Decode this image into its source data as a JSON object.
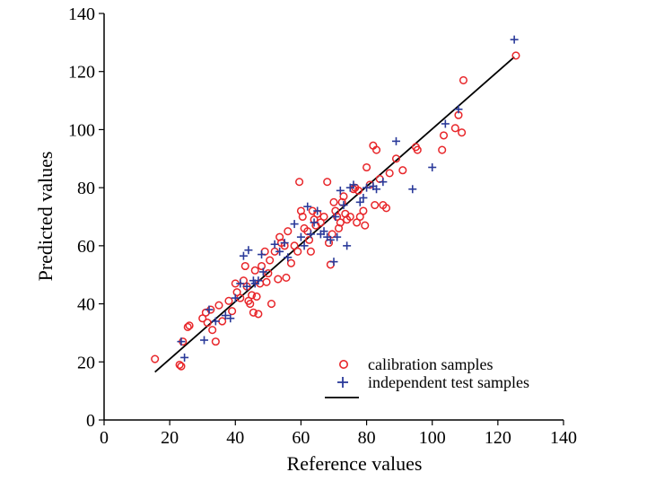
{
  "chart_data": {
    "type": "scatter",
    "xlabel": "Reference values",
    "ylabel": "Predicted values",
    "xlim": [
      0,
      140
    ],
    "ylim": [
      0,
      140
    ],
    "xticks": [
      0,
      20,
      40,
      60,
      80,
      100,
      120,
      140
    ],
    "yticks": [
      0,
      20,
      40,
      60,
      80,
      100,
      120,
      140
    ],
    "grid": false,
    "legend_position": "bottom-right",
    "colors": {
      "calibration": "#e8262a",
      "test": "#2a3a9a",
      "line": "#000000"
    },
    "series": [
      {
        "name": "calibration samples",
        "marker": "circle",
        "points": [
          [
            15.5,
            21
          ],
          [
            23,
            19
          ],
          [
            23.5,
            18.5
          ],
          [
            24,
            27
          ],
          [
            25.5,
            32
          ],
          [
            26,
            32.5
          ],
          [
            30,
            35
          ],
          [
            31,
            37
          ],
          [
            31.5,
            33.5
          ],
          [
            32.5,
            38
          ],
          [
            33,
            31
          ],
          [
            34,
            27
          ],
          [
            35,
            39.5
          ],
          [
            36,
            34
          ],
          [
            38,
            41
          ],
          [
            39,
            37.5
          ],
          [
            40,
            47
          ],
          [
            40.5,
            44
          ],
          [
            41.5,
            42
          ],
          [
            42.5,
            48
          ],
          [
            43,
            53
          ],
          [
            43.5,
            46
          ],
          [
            44,
            41
          ],
          [
            44.5,
            40
          ],
          [
            45,
            43
          ],
          [
            45.5,
            37
          ],
          [
            46,
            51.5
          ],
          [
            46.5,
            42.5
          ],
          [
            47,
            36.5
          ],
          [
            47.5,
            47
          ],
          [
            48,
            53
          ],
          [
            49,
            58
          ],
          [
            49.5,
            47.5
          ],
          [
            50,
            50.5
          ],
          [
            50.5,
            55
          ],
          [
            51,
            40
          ],
          [
            52,
            58
          ],
          [
            53,
            48.5
          ],
          [
            53.5,
            63
          ],
          [
            54,
            61
          ],
          [
            55,
            60
          ],
          [
            55.5,
            49
          ],
          [
            56,
            65
          ],
          [
            57,
            54
          ],
          [
            58,
            60
          ],
          [
            59,
            58
          ],
          [
            59.5,
            82
          ],
          [
            60,
            72
          ],
          [
            60.5,
            70
          ],
          [
            61,
            66
          ],
          [
            62,
            65
          ],
          [
            62.5,
            62
          ],
          [
            63,
            58
          ],
          [
            63.5,
            72
          ],
          [
            64,
            69
          ],
          [
            64.5,
            67
          ],
          [
            65,
            71
          ],
          [
            66,
            68
          ],
          [
            67,
            70
          ],
          [
            68,
            82
          ],
          [
            68.5,
            61
          ],
          [
            69,
            53.5
          ],
          [
            69.5,
            64
          ],
          [
            70,
            75
          ],
          [
            70.5,
            72
          ],
          [
            71,
            70
          ],
          [
            71.5,
            66
          ],
          [
            72,
            68
          ],
          [
            72.5,
            75
          ],
          [
            73,
            77
          ],
          [
            73.5,
            71
          ],
          [
            74,
            69
          ],
          [
            75,
            70
          ],
          [
            76,
            79.5
          ],
          [
            76.5,
            80
          ],
          [
            77,
            68
          ],
          [
            77.5,
            79
          ],
          [
            78,
            70
          ],
          [
            79,
            72
          ],
          [
            79.5,
            67
          ],
          [
            80,
            87
          ],
          [
            81,
            81
          ],
          [
            82,
            94.5
          ],
          [
            82.5,
            74
          ],
          [
            83,
            93
          ],
          [
            84,
            83
          ],
          [
            85,
            74
          ],
          [
            86,
            73
          ],
          [
            87,
            85
          ],
          [
            89,
            90
          ],
          [
            91,
            86
          ],
          [
            95,
            94
          ],
          [
            95.5,
            93
          ],
          [
            103,
            93
          ],
          [
            103.5,
            98
          ],
          [
            107,
            100.5
          ],
          [
            108,
            105
          ],
          [
            109,
            99
          ],
          [
            109.5,
            117
          ],
          [
            125.5,
            125.5
          ]
        ]
      },
      {
        "name": "independent test samples",
        "marker": "plus",
        "points": [
          [
            23.5,
            27
          ],
          [
            24.5,
            21.5
          ],
          [
            30.5,
            27.5
          ],
          [
            32,
            38
          ],
          [
            34,
            34
          ],
          [
            37,
            36
          ],
          [
            38.5,
            35
          ],
          [
            40,
            42
          ],
          [
            41.5,
            47
          ],
          [
            42.5,
            56.5
          ],
          [
            43.5,
            46
          ],
          [
            44,
            58.5
          ],
          [
            45.5,
            48
          ],
          [
            46,
            47
          ],
          [
            47,
            48
          ],
          [
            48,
            57
          ],
          [
            48.5,
            51
          ],
          [
            52,
            60.5
          ],
          [
            53.5,
            58
          ],
          [
            55,
            61
          ],
          [
            56,
            56
          ],
          [
            58,
            67.5
          ],
          [
            60,
            63
          ],
          [
            61,
            60
          ],
          [
            62,
            73.5
          ],
          [
            63,
            64
          ],
          [
            64,
            68
          ],
          [
            65,
            72
          ],
          [
            66,
            64
          ],
          [
            67,
            65
          ],
          [
            68,
            63
          ],
          [
            69,
            62
          ],
          [
            70,
            54.5
          ],
          [
            70.5,
            70
          ],
          [
            71,
            63
          ],
          [
            72,
            79
          ],
          [
            73,
            74
          ],
          [
            74,
            60
          ],
          [
            75,
            80
          ],
          [
            76,
            81
          ],
          [
            78,
            75
          ],
          [
            79,
            76.5
          ],
          [
            80,
            80
          ],
          [
            82,
            80.5
          ],
          [
            83,
            79.5
          ],
          [
            85,
            82
          ],
          [
            89,
            96
          ],
          [
            94,
            79.5
          ],
          [
            100,
            87
          ],
          [
            104,
            102
          ],
          [
            108,
            107
          ],
          [
            125,
            131
          ]
        ]
      },
      {
        "name": "",
        "marker": "line",
        "points": [
          [
            15.5,
            16.5
          ],
          [
            125,
            125
          ]
        ]
      }
    ]
  }
}
